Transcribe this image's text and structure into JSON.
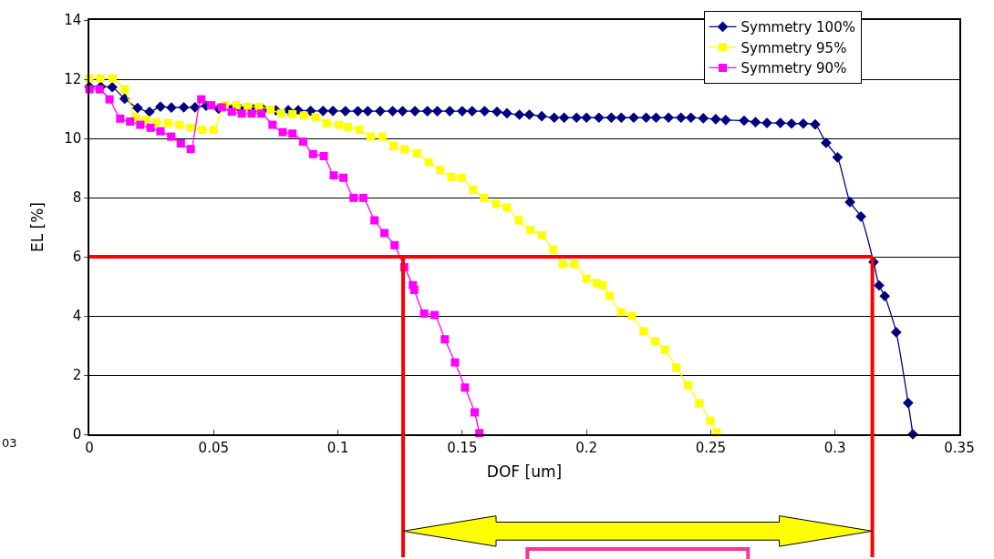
{
  "chart_data": {
    "type": "line",
    "xlabel": "DOF [um]",
    "ylabel": "EL [%]",
    "xlim": [
      0,
      0.35
    ],
    "xticks": [
      0,
      0.05,
      0.1,
      0.15,
      0.2,
      0.25,
      0.3,
      0.35
    ],
    "ylim": [
      0,
      14
    ],
    "yticks": [
      0,
      2,
      4,
      6,
      8,
      10,
      12,
      14
    ],
    "grid": "y",
    "legend": "top right",
    "series": [
      {
        "name": "Symmetry 100%",
        "color": "#000080",
        "marker": "diamond",
        "x": [
          0,
          0.0046,
          0.0092,
          0.0142,
          0.0194,
          0.0242,
          0.0286,
          0.033,
          0.038,
          0.0425,
          0.047,
          0.052,
          0.057,
          0.061,
          0.066,
          0.07,
          0.075,
          0.08,
          0.084,
          0.089,
          0.094,
          0.098,
          0.103,
          0.108,
          0.112,
          0.117,
          0.122,
          0.126,
          0.131,
          0.136,
          0.14,
          0.145,
          0.15,
          0.154,
          0.159,
          0.164,
          0.168,
          0.173,
          0.177,
          0.182,
          0.187,
          0.191,
          0.196,
          0.2,
          0.205,
          0.21,
          0.214,
          0.219,
          0.224,
          0.228,
          0.233,
          0.238,
          0.242,
          0.247,
          0.252,
          0.256,
          0.2634,
          0.268,
          0.2726,
          0.278,
          0.2825,
          0.2872,
          0.292,
          0.2964,
          0.301,
          0.306,
          0.3104,
          0.3155,
          0.3177,
          0.32,
          0.3246,
          0.3294,
          0.3313
        ],
        "values": [
          11.75,
          11.75,
          11.73,
          11.34,
          11.03,
          10.9,
          11.07,
          11.04,
          11.05,
          11.05,
          11.1,
          11.0,
          11.0,
          10.98,
          10.98,
          10.97,
          10.95,
          10.95,
          10.95,
          10.93,
          10.93,
          10.93,
          10.92,
          10.92,
          10.92,
          10.92,
          10.92,
          10.92,
          10.92,
          10.92,
          10.92,
          10.92,
          10.92,
          10.92,
          10.92,
          10.9,
          10.85,
          10.8,
          10.8,
          10.75,
          10.7,
          10.7,
          10.7,
          10.7,
          10.7,
          10.7,
          10.7,
          10.7,
          10.7,
          10.7,
          10.7,
          10.7,
          10.7,
          10.68,
          10.65,
          10.62,
          10.6,
          10.55,
          10.52,
          10.52,
          10.5,
          10.5,
          10.47,
          9.85,
          9.36,
          7.85,
          7.36,
          5.82,
          5.03,
          4.67,
          3.45,
          1.06,
          0
        ]
      },
      {
        "name": "Symmetry 95%",
        "color": "#ffff00",
        "marker": "square",
        "x": [
          0,
          0.0044,
          0.0093,
          0.0142,
          0.0185,
          0.0227,
          0.027,
          0.0317,
          0.0362,
          0.0408,
          0.0454,
          0.05,
          0.0545,
          0.0592,
          0.0637,
          0.0682,
          0.0729,
          0.0771,
          0.0817,
          0.0863,
          0.091,
          0.0955,
          0.1004,
          0.104,
          0.1086,
          0.1132,
          0.1179,
          0.1224,
          0.1269,
          0.1318,
          0.1365,
          0.1411,
          0.1456,
          0.1497,
          0.1544,
          0.1588,
          0.1636,
          0.168,
          0.1728,
          0.1774,
          0.182,
          0.1866,
          0.1905,
          0.1952,
          0.2,
          0.2041,
          0.2065,
          0.2092,
          0.2139,
          0.2182,
          0.223,
          0.2276,
          0.2315,
          0.2361,
          0.2408,
          0.2453,
          0.2499,
          0.2524
        ],
        "values": [
          12.03,
          12.03,
          12.03,
          11.66,
          10.72,
          10.62,
          10.54,
          10.52,
          10.46,
          10.36,
          10.29,
          10.29,
          11.12,
          11.12,
          11.07,
          11.07,
          10.97,
          10.84,
          10.82,
          10.77,
          10.72,
          10.52,
          10.46,
          10.39,
          10.29,
          10.06,
          10.06,
          9.74,
          9.63,
          9.5,
          9.2,
          8.93,
          8.7,
          8.67,
          8.26,
          7.99,
          7.79,
          7.66,
          7.23,
          6.9,
          6.73,
          6.24,
          5.75,
          5.75,
          5.26,
          5.11,
          5.04,
          4.68,
          4.13,
          4.0,
          3.48,
          3.14,
          2.86,
          2.26,
          1.66,
          1.05,
          0.46,
          0.06
        ]
      },
      {
        "name": "Symmetry 90%",
        "color": "#ff00ff",
        "marker": "square",
        "x": [
          0,
          0.0041,
          0.0081,
          0.0124,
          0.0164,
          0.0205,
          0.0246,
          0.0286,
          0.0329,
          0.0368,
          0.0408,
          0.045,
          0.049,
          0.0533,
          0.0573,
          0.0613,
          0.0653,
          0.0692,
          0.0737,
          0.0778,
          0.0817,
          0.086,
          0.09,
          0.0943,
          0.0983,
          0.1022,
          0.1063,
          0.1102,
          0.1147,
          0.1187,
          0.1228,
          0.1267,
          0.1301,
          0.1307,
          0.1347,
          0.1389,
          0.143,
          0.1471,
          0.1511,
          0.155,
          0.1569
        ],
        "values": [
          11.66,
          11.66,
          11.32,
          10.67,
          10.57,
          10.46,
          10.36,
          10.24,
          10.06,
          9.83,
          9.64,
          11.32,
          11.12,
          11.05,
          10.9,
          10.84,
          10.84,
          10.84,
          10.46,
          10.21,
          10.16,
          9.89,
          9.47,
          9.4,
          8.75,
          8.67,
          7.99,
          7.99,
          7.23,
          6.8,
          6.39,
          5.65,
          5.04,
          4.88,
          4.08,
          4.03,
          3.21,
          2.43,
          1.58,
          0.74,
          0.04
        ]
      }
    ],
    "ref_lines": [
      {
        "axis": "y",
        "value": 6,
        "color": "#ff0000"
      },
      {
        "axis": "x",
        "value": 0.1262,
        "color": "#ff0000"
      },
      {
        "axis": "x",
        "value": 0.315,
        "color": "#ff0000"
      }
    ],
    "annotations": [
      "03"
    ]
  }
}
